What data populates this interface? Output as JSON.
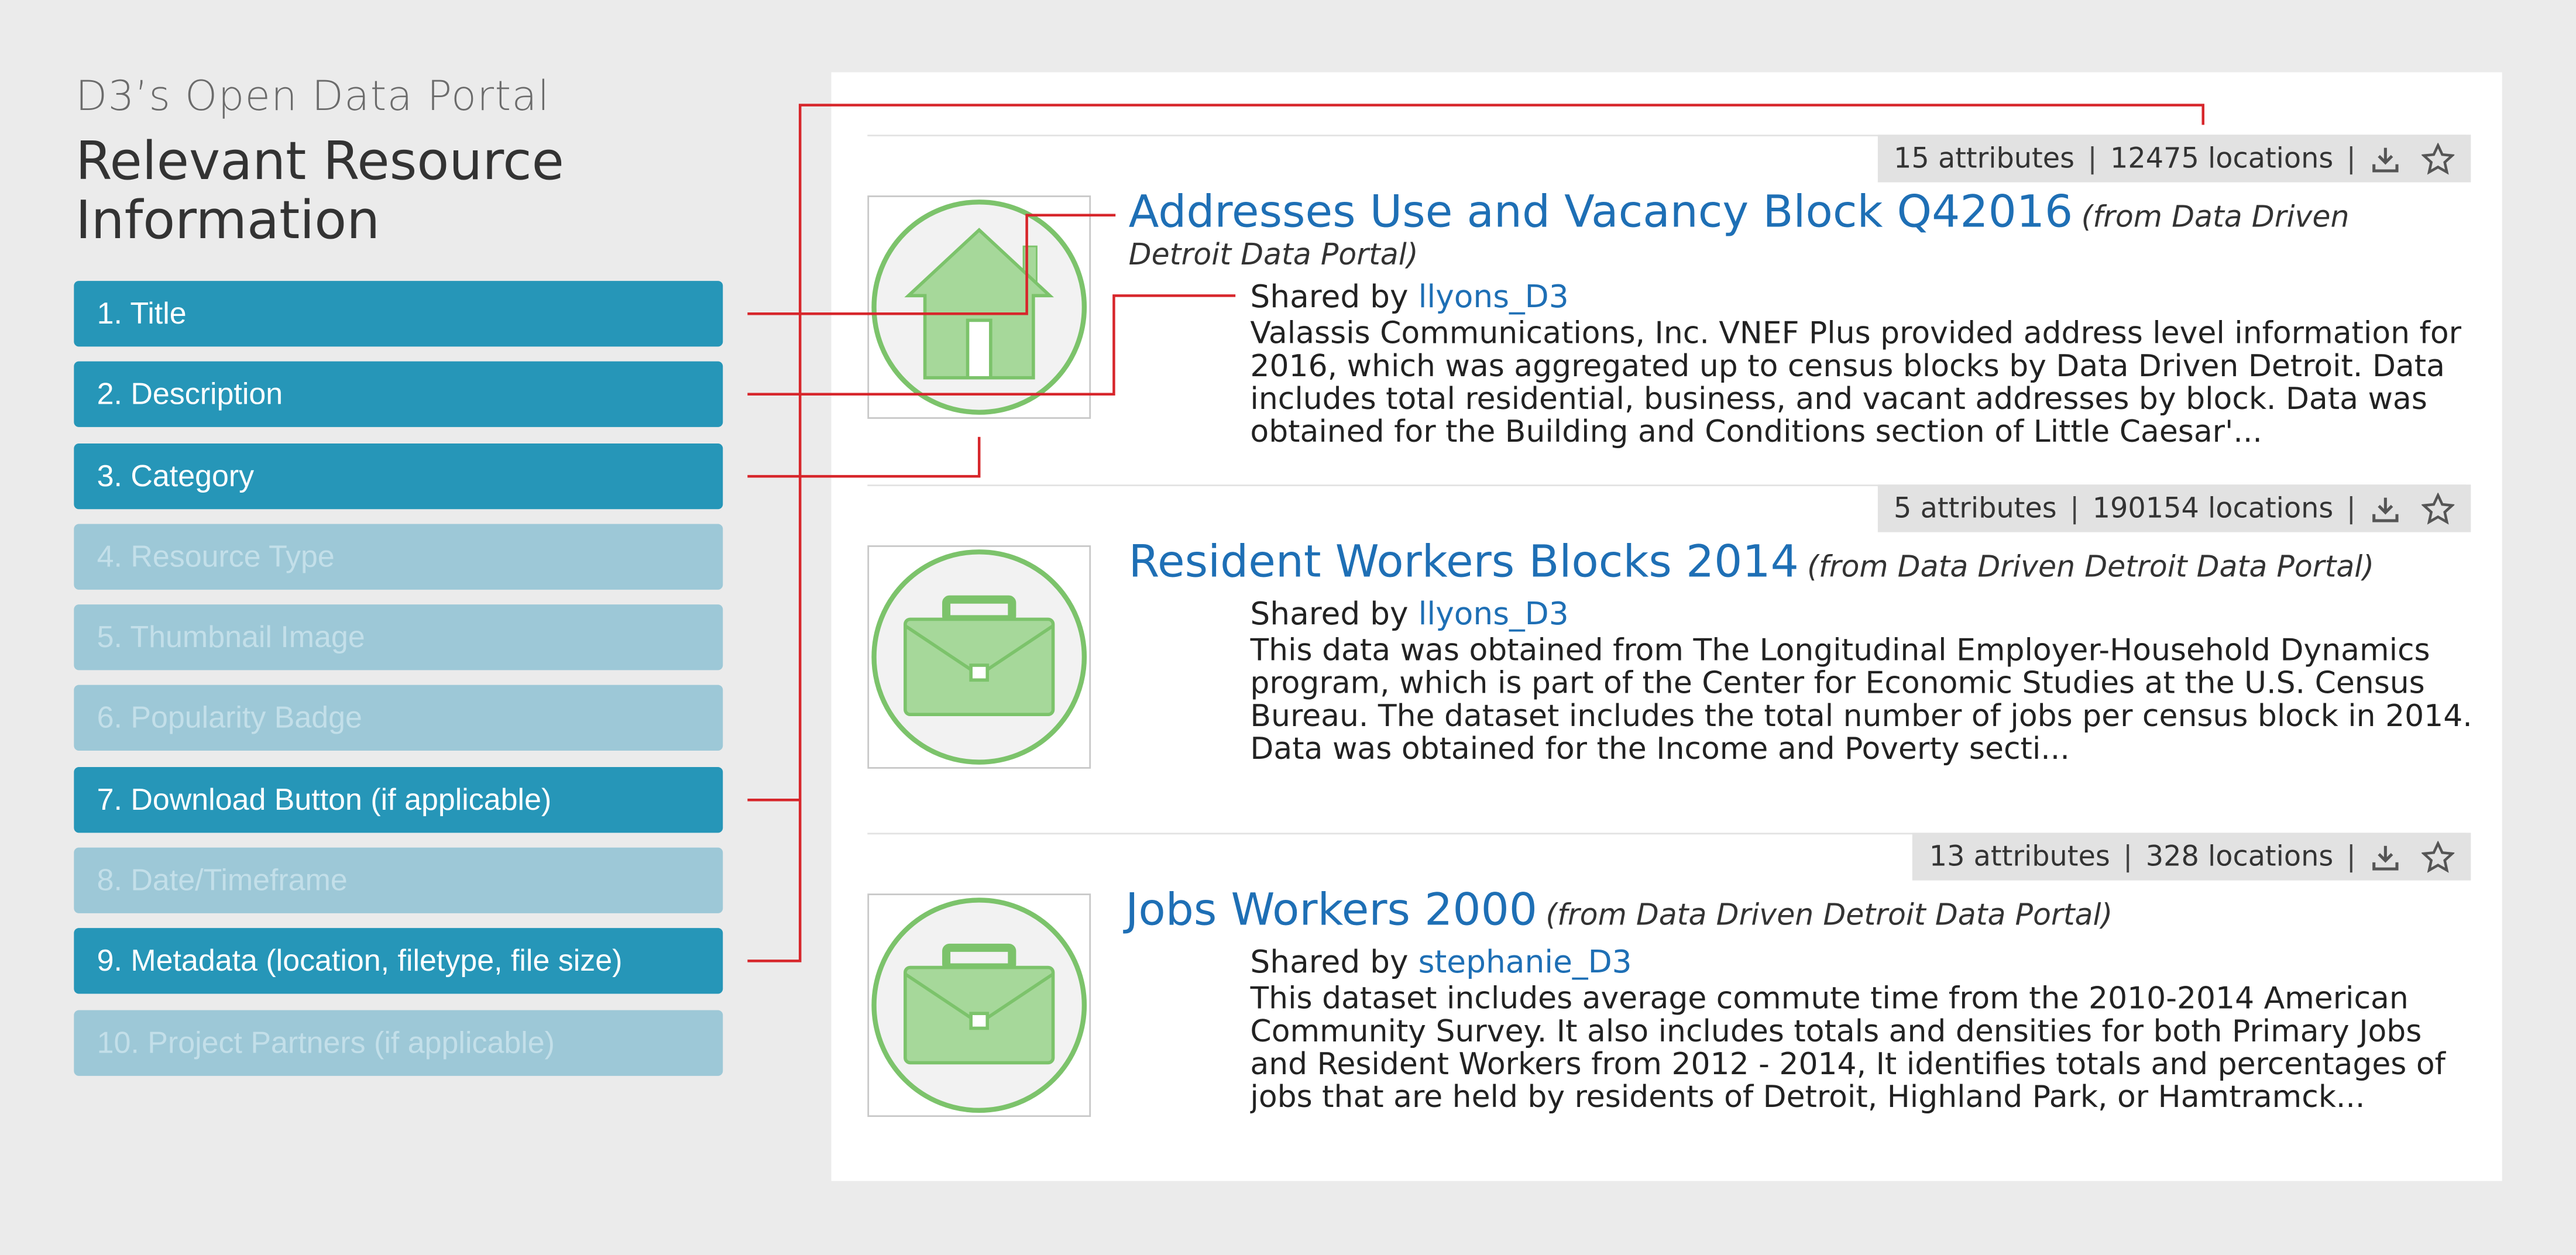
{
  "header": {
    "kicker": "D3’s Open Data Portal",
    "title": "Relevant Resource Information"
  },
  "legend": [
    {
      "label": "1. Title",
      "active": true
    },
    {
      "label": "2. Description",
      "active": true
    },
    {
      "label": "3. Category",
      "active": true
    },
    {
      "label": "4. Resource Type",
      "active": false
    },
    {
      "label": "5. Thumbnail Image",
      "active": false
    },
    {
      "label": "6. Popularity Badge",
      "active": false
    },
    {
      "label": "7. Download Button (if applicable)",
      "active": true
    },
    {
      "label": "8. Date/Timeframe",
      "active": false
    },
    {
      "label": "9. Metadata (location, filetype, file size)",
      "active": true
    },
    {
      "label": "10. Project Partners (if applicable)",
      "active": false
    }
  ],
  "results": [
    {
      "icon": "house-icon",
      "attributes": "15 attributes",
      "locations": "12475 locations",
      "title": "Addresses Use and Vacancy Block Q42016",
      "source": "(from Data Driven Detroit Data Portal)",
      "shared_label": "Shared by",
      "user": "llyons_D3",
      "description": "Valassis Communications, Inc. VNEF Plus provided address level information for 2016, which was aggregated up to census blocks by Data Driven Detroit. Data includes total residential, business, and vacant addresses by block. Data was obtained for the Building and Conditions section of Little Caesar'..."
    },
    {
      "icon": "briefcase-icon",
      "attributes": "5 attributes",
      "locations": "190154 locations",
      "title": "Resident Workers Blocks 2014",
      "source": "(from Data Driven Detroit Data Portal)",
      "shared_label": "Shared by",
      "user": "llyons_D3",
      "description": "This data was obtained from The Longitudinal Employer-Household Dynamics program, which is part of the Center for Economic Studies at the U.S. Census Bureau. The dataset includes the total number of jobs per census block in 2014. Data was obtained for the Income and Poverty secti..."
    },
    {
      "icon": "briefcase-icon",
      "attributes": "13 attributes",
      "locations": "328 locations",
      "title": "Jobs Workers 2000",
      "source": "(from Data Driven Detroit Data Portal)",
      "shared_label": "Shared by",
      "user": "stephanie_D3",
      "description": "This dataset includes average commute time from the 2010-2014 American Community Survey. It also includes totals and densities for both Primary Jobs and Resident Workers from 2012 - 2014, It identifies totals and percentages of jobs that are held by residents of Detroit, Highland Park, or Hamtramck..."
    }
  ],
  "colors": {
    "legend_active": "#2696b8",
    "legend_inactive": "#9dc8d7",
    "title_link": "#1e6fb5",
    "connector": "#d7262b",
    "icon_green": "#7cc36b"
  }
}
